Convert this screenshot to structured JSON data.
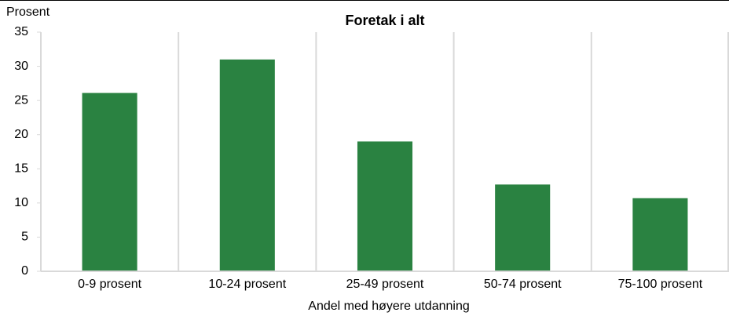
{
  "chart_data": {
    "type": "bar",
    "title": "Foretak i alt",
    "y_label": "Prosent",
    "x_label": "Andel med høyere utdanning",
    "categories": [
      "0-9 prosent",
      "10-24 prosent",
      "25-49 prosent",
      "50-74 prosent",
      "75-100 prosent"
    ],
    "values": [
      26.1,
      31.0,
      19.0,
      12.7,
      10.7
    ],
    "color": "#2a8241",
    "ylim": [
      0,
      35
    ],
    "yticks": [
      0,
      5,
      10,
      15,
      20,
      25,
      30,
      35
    ],
    "grid": true
  }
}
